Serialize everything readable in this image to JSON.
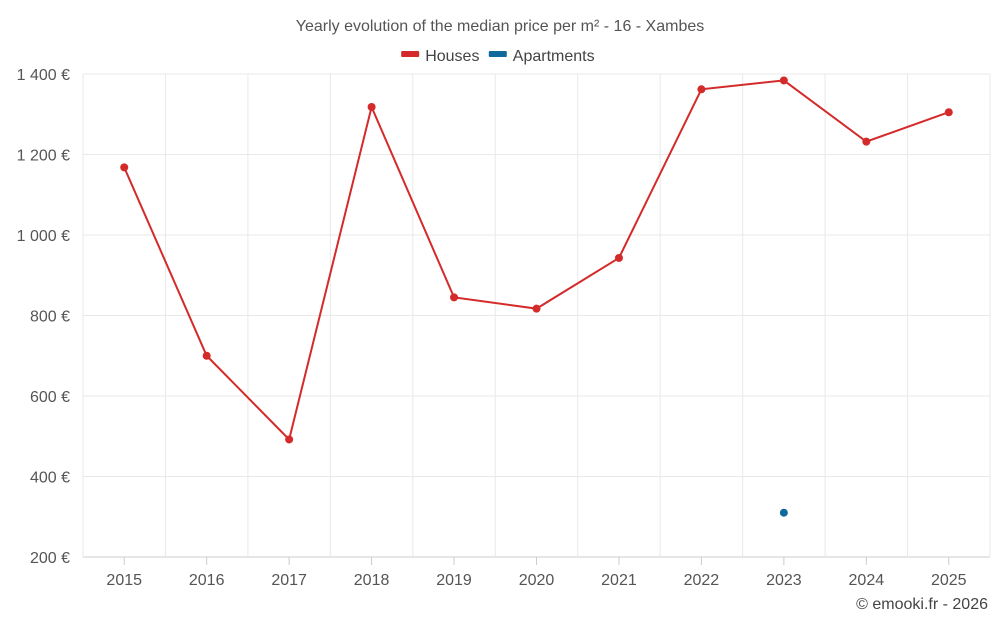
{
  "chart_data": {
    "type": "line",
    "title": "Yearly evolution of the median price per m² - 16 - Xambes",
    "categories": [
      "2015",
      "2016",
      "2017",
      "2018",
      "2019",
      "2020",
      "2021",
      "2022",
      "2023",
      "2024",
      "2025"
    ],
    "series": [
      {
        "name": "Houses",
        "color": "#d42a2a",
        "values": [
          1168,
          700,
          492,
          1318,
          845,
          817,
          943,
          1362,
          1384,
          1232,
          1305
        ]
      },
      {
        "name": "Apartments",
        "color": "#0f6a9b",
        "values": [
          null,
          null,
          null,
          null,
          null,
          null,
          null,
          null,
          310,
          null,
          null
        ]
      }
    ],
    "y_ticks": [
      "200 €",
      "400 €",
      "600 €",
      "800 €",
      "1 000 €",
      "1 200 €",
      "1 400 €"
    ],
    "ylim": [
      200,
      1400
    ],
    "grid": true,
    "legend_position": "top-center",
    "credit": "© emooki.fr - 2026"
  }
}
